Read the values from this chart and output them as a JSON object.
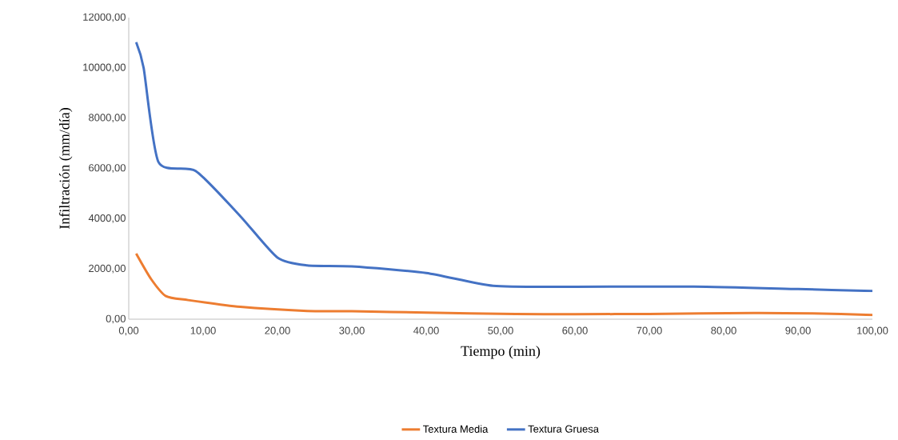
{
  "chart_data": {
    "type": "line",
    "xlabel": "Tiempo (min)",
    "ylabel": "Infiltración (mm/día)",
    "xlim": [
      0,
      100
    ],
    "ylim": [
      0,
      12000
    ],
    "xticks": [
      {
        "value": 0,
        "label": "0,00"
      },
      {
        "value": 10,
        "label": "10,00"
      },
      {
        "value": 20,
        "label": "20,00"
      },
      {
        "value": 30,
        "label": "30,00"
      },
      {
        "value": 40,
        "label": "40,00"
      },
      {
        "value": 50,
        "label": "50,00"
      },
      {
        "value": 60,
        "label": "60,00"
      },
      {
        "value": 70,
        "label": "70,00"
      },
      {
        "value": 80,
        "label": "80,00"
      },
      {
        "value": 90,
        "label": "90,00"
      },
      {
        "value": 100,
        "label": "100,00"
      }
    ],
    "yticks": [
      {
        "value": 0,
        "label": "0,00"
      },
      {
        "value": 2000,
        "label": "2000,00"
      },
      {
        "value": 4000,
        "label": "4000,00"
      },
      {
        "value": 6000,
        "label": "6000,00"
      },
      {
        "value": 8000,
        "label": "8000,00"
      },
      {
        "value": 10000,
        "label": "10000,00"
      },
      {
        "value": 12000,
        "label": "12000,00"
      }
    ],
    "grid": false,
    "legend": "bottom",
    "marker": "none",
    "line_style": "solid",
    "series": [
      {
        "name": "Textura Media",
        "color": "#ed7d31",
        "x": [
          1,
          3,
          5,
          8,
          15,
          24,
          30,
          40,
          52,
          60,
          70,
          84,
          92,
          100
        ],
        "values": [
          2610,
          1600,
          920,
          760,
          490,
          330,
          320,
          260,
          210,
          200,
          210,
          250,
          230,
          170
        ]
      },
      {
        "name": "Textura Gruesa",
        "color": "#4472c4",
        "x": [
          1,
          2,
          4,
          9,
          15,
          20,
          24,
          30,
          40,
          49,
          60,
          76,
          90,
          100
        ],
        "values": [
          11020,
          10000,
          6250,
          5900,
          4100,
          2450,
          2140,
          2100,
          1840,
          1330,
          1290,
          1300,
          1200,
          1120
        ]
      }
    ]
  }
}
